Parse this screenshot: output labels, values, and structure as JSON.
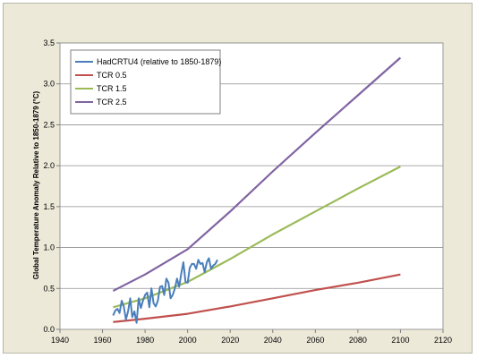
{
  "chart_data": {
    "type": "line",
    "title": "",
    "xlabel": "",
    "ylabel": "Global Temperature Anomaly Relative to 1850-1879 (°C)",
    "xlim": [
      1940,
      2120
    ],
    "ylim": [
      0,
      3.5
    ],
    "x_ticks": [
      "1940",
      "1960",
      "1980",
      "2000",
      "2020",
      "2040",
      "2060",
      "2080",
      "2100",
      "2120"
    ],
    "y_ticks": [
      "0.0",
      "0.5",
      "1.0",
      "1.5",
      "2.0",
      "2.5",
      "3.0",
      "3.5"
    ],
    "grid": "horizontal",
    "legend_position": "top-left",
    "series": [
      {
        "name": "HadCRTU4 (relative to 1850-1879)",
        "color": "#4a7ebb",
        "x": [
          1965,
          1966,
          1967,
          1968,
          1969,
          1970,
          1971,
          1972,
          1973,
          1974,
          1975,
          1976,
          1977,
          1978,
          1979,
          1980,
          1981,
          1982,
          1983,
          1984,
          1985,
          1986,
          1987,
          1988,
          1989,
          1990,
          1991,
          1992,
          1993,
          1994,
          1995,
          1996,
          1997,
          1998,
          1999,
          2000,
          2001,
          2002,
          2003,
          2004,
          2005,
          2006,
          2007,
          2008,
          2009,
          2010,
          2011,
          2012,
          2013,
          2014
        ],
        "y": [
          0.17,
          0.23,
          0.25,
          0.2,
          0.35,
          0.28,
          0.12,
          0.22,
          0.38,
          0.15,
          0.22,
          0.08,
          0.38,
          0.26,
          0.35,
          0.42,
          0.45,
          0.27,
          0.5,
          0.32,
          0.28,
          0.35,
          0.52,
          0.53,
          0.42,
          0.62,
          0.57,
          0.38,
          0.42,
          0.5,
          0.62,
          0.52,
          0.68,
          0.82,
          0.58,
          0.57,
          0.75,
          0.8,
          0.8,
          0.74,
          0.85,
          0.8,
          0.81,
          0.7,
          0.82,
          0.87,
          0.74,
          0.78,
          0.8,
          0.85
        ]
      },
      {
        "name": "TCR 0.5",
        "color": "#c0504d",
        "x": [
          1965,
          1980,
          2000,
          2020,
          2040,
          2060,
          2080,
          2100
        ],
        "y": [
          0.09,
          0.13,
          0.19,
          0.28,
          0.38,
          0.48,
          0.57,
          0.67
        ]
      },
      {
        "name": "TCR 1.5",
        "color": "#9bbb59",
        "x": [
          1965,
          1980,
          2000,
          2020,
          2040,
          2060,
          2080,
          2100
        ],
        "y": [
          0.27,
          0.38,
          0.58,
          0.86,
          1.16,
          1.44,
          1.72,
          1.99
        ]
      },
      {
        "name": "TCR 2.5",
        "color": "#8064a2",
        "x": [
          1965,
          1980,
          2000,
          2020,
          2040,
          2060,
          2080,
          2100
        ],
        "y": [
          0.47,
          0.67,
          0.98,
          1.44,
          1.93,
          2.4,
          2.86,
          3.32
        ]
      }
    ]
  }
}
